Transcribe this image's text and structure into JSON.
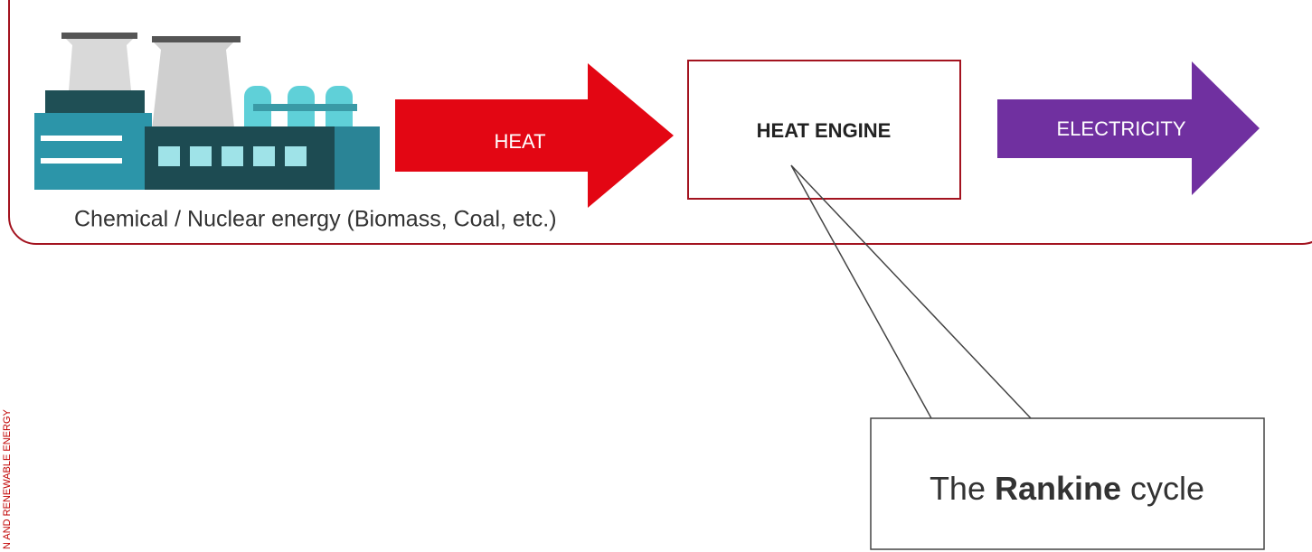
{
  "side_text": "N AND RENEWABLE ENERGY",
  "flow": {
    "source_label": "Chemical / Nuclear energy (Biomass, Coal, etc.)",
    "heat": "HEAT",
    "engine": "HEAT ENGINE",
    "electricity": "ELECTRICITY"
  },
  "callout": {
    "parts": [
      "The ",
      "Rankine",
      " cycle"
    ]
  }
}
